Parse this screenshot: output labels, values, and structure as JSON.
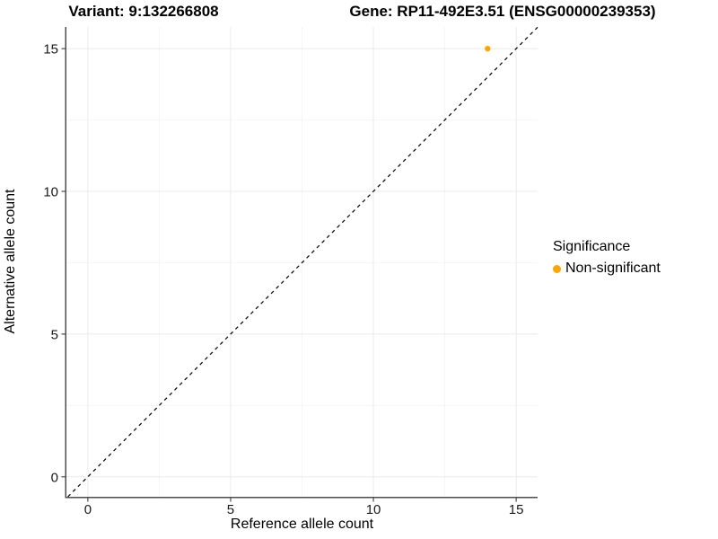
{
  "chart_data": {
    "type": "scatter",
    "title_left": "Variant: 9:132266808",
    "title_right": "Gene: RP11-492E3.51 (ENSG00000239353)",
    "xlabel": "Reference allele count",
    "ylabel": "Alternative allele count",
    "x_ticks": [
      0,
      5,
      10,
      15
    ],
    "y_ticks": [
      0,
      5,
      10,
      15
    ],
    "x_minor_ticks": [
      2.5,
      7.5,
      12.5
    ],
    "y_minor_ticks": [
      2.5,
      7.5,
      12.5
    ],
    "xlim": [
      -0.75,
      15.75
    ],
    "ylim": [
      -0.7,
      15.76
    ],
    "grid": true,
    "identity_line": {
      "equation": "y = x",
      "style": "dashed",
      "color": "#000000"
    },
    "series": [
      {
        "name": "Non-significant",
        "color": "#FFA500",
        "points": [
          {
            "x": 14,
            "y": 15
          }
        ]
      }
    ],
    "legend": {
      "title": "Significance",
      "position": "right",
      "entries": [
        {
          "label": "Non-significant",
          "color": "#FFA500"
        }
      ]
    }
  },
  "colors": {
    "background": "#FFFFFF",
    "axis_line": "#4D4D4D",
    "grid_major": "#EBEBEB",
    "grid_minor": "#F5F5F5",
    "tick_label": "#1A1A1A",
    "text": "#000000"
  }
}
